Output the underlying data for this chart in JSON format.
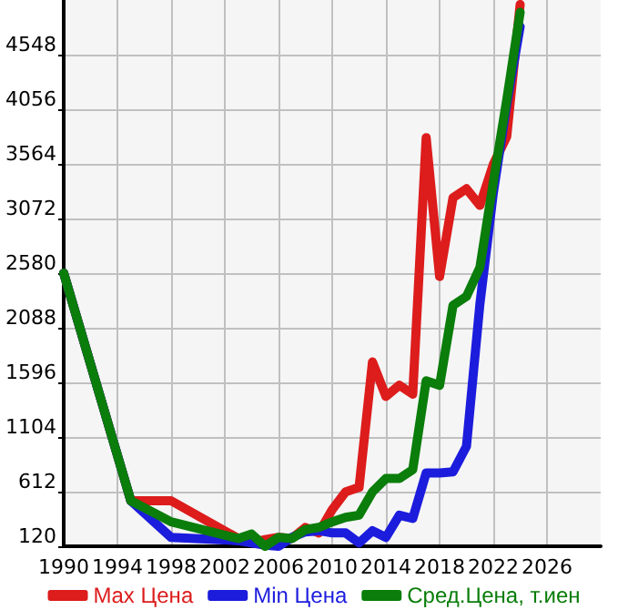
{
  "chart_data": {
    "type": "line",
    "x": [
      1990,
      1995,
      1998,
      2003,
      2004,
      2005,
      2006,
      2007,
      2008,
      2009,
      2010,
      2011,
      2012,
      2013,
      2014,
      2015,
      2016,
      2017,
      2018,
      2019,
      2020,
      2021,
      2022,
      2023,
      2024
    ],
    "series": [
      {
        "name": "Max Цена",
        "color": "#dd1c1c",
        "values": [
          2580,
          530,
          530,
          190,
          150,
          180,
          200,
          190,
          290,
          240,
          450,
          610,
          650,
          1780,
          1470,
          1570,
          1490,
          3800,
          2550,
          3260,
          3340,
          3190,
          3560,
          3810,
          5000
        ]
      },
      {
        "name": "Min Цена",
        "color": "#1c1cdd",
        "values": [
          2580,
          530,
          200,
          170,
          150,
          130,
          120,
          200,
          250,
          260,
          240,
          240,
          150,
          260,
          200,
          400,
          370,
          780,
          780,
          790,
          1020,
          2300,
          3300,
          4100,
          4800
        ]
      },
      {
        "name": "Сред.Цена, т.иен",
        "color": "#0a7d0a",
        "values": [
          2580,
          530,
          340,
          190,
          230,
          120,
          200,
          190,
          270,
          290,
          340,
          380,
          400,
          610,
          730,
          730,
          810,
          1610,
          1570,
          2290,
          2370,
          2630,
          3400,
          4140,
          4930
        ]
      }
    ],
    "xlim": [
      1990,
      2030
    ],
    "xticks": [
      1990,
      1994,
      1998,
      2002,
      2006,
      2010,
      2014,
      2018,
      2022,
      2026
    ],
    "ylim": [
      120,
      5040
    ],
    "yticks": [
      120,
      612,
      1104,
      1596,
      2088,
      2580,
      3072,
      3564,
      4056,
      4548
    ],
    "grid": true,
    "legend": "bottom",
    "marker": "none",
    "line_style": "solid"
  }
}
